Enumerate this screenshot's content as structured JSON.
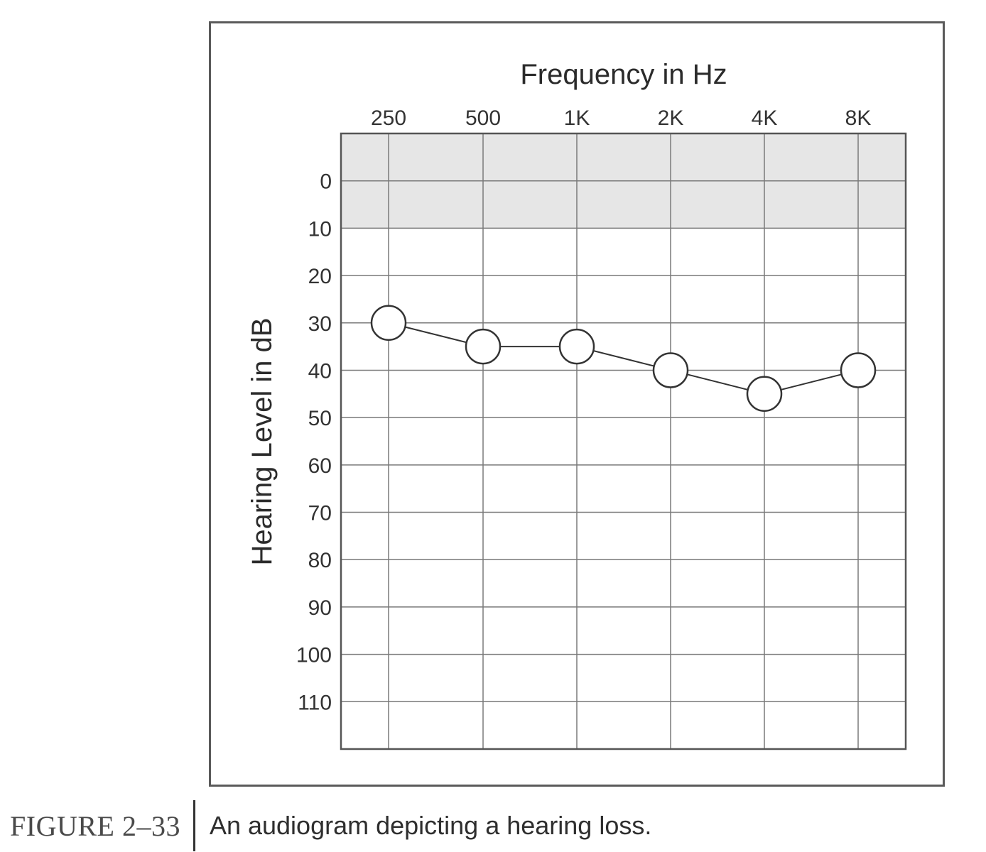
{
  "chart_data": {
    "type": "line",
    "title": "Frequency in Hz",
    "xlabel": "Frequency in Hz",
    "ylabel": "Hearing Level in dB",
    "categories": [
      "250",
      "500",
      "1K",
      "2K",
      "4K",
      "8K"
    ],
    "y_ticks": [
      "0",
      "10",
      "20",
      "30",
      "40",
      "50",
      "60",
      "70",
      "80",
      "90",
      "100",
      "110"
    ],
    "ylim": [
      -10,
      120
    ],
    "y_inverted": true,
    "shaded_band": [
      -10,
      10
    ],
    "grid": true,
    "marker": "open-circle",
    "series": [
      {
        "values": [
          30,
          35,
          35,
          40,
          45,
          40
        ]
      }
    ]
  },
  "caption": {
    "label": "FIGURE 2–33",
    "text": "An audiogram depicting a hearing loss."
  },
  "colors": {
    "band": "#e6e6e6",
    "grid": "#7a7a7a",
    "line": "#333333",
    "marker_fill": "#ffffff"
  }
}
